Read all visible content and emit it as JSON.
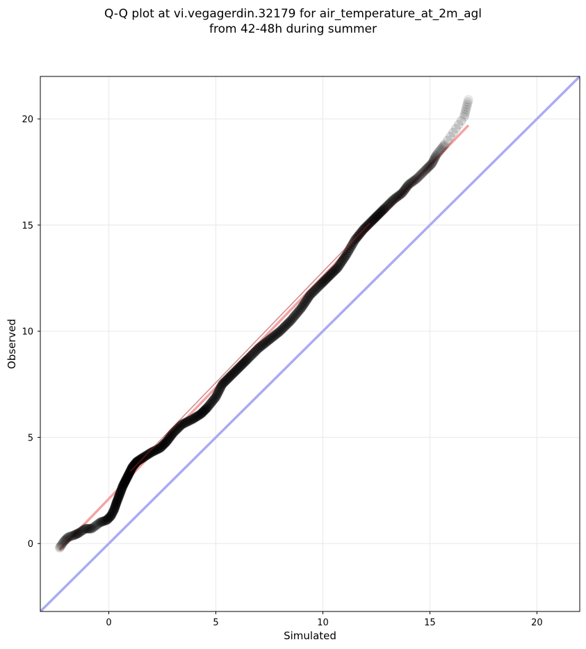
{
  "title_line1": "Q-Q plot at vi.vegagerdin.32179 for air_temperature_at_2m_agl",
  "title_line2": "from 42-48h during summer",
  "chart_data": {
    "type": "scatter",
    "title": "Q-Q plot at vi.vegagerdin.32179 for air_temperature_at_2m_agl\nfrom 42-48h during summer",
    "xlabel": "Simulated",
    "ylabel": "Observed",
    "xlim": [
      -3.2,
      22.0
    ],
    "ylim": [
      -3.2,
      22.0
    ],
    "xticks": [
      0,
      5,
      10,
      15,
      20
    ],
    "yticks": [
      0,
      5,
      10,
      15,
      20
    ],
    "grid": true,
    "reference_line": {
      "name": "1:1 line",
      "color": "#aaaaf2",
      "points": [
        [
          -3.2,
          -3.2
        ],
        [
          22.0,
          22.0
        ]
      ]
    },
    "fit_line": {
      "color": "#f4a3a3",
      "points": [
        [
          -2.3,
          -0.3
        ],
        [
          16.8,
          19.7
        ]
      ]
    },
    "quantile_curve": [
      [
        -2.3,
        -0.2
      ],
      [
        -2.1,
        0.1
      ],
      [
        -1.9,
        0.3
      ],
      [
        -1.6,
        0.4
      ],
      [
        -1.4,
        0.5
      ],
      [
        -1.1,
        0.7
      ],
      [
        -0.8,
        0.7
      ],
      [
        -0.4,
        1.0
      ],
      [
        -0.1,
        1.1
      ],
      [
        0.1,
        1.3
      ],
      [
        0.25,
        1.6
      ],
      [
        0.35,
        1.9
      ],
      [
        0.5,
        2.3
      ],
      [
        0.65,
        2.7
      ],
      [
        0.8,
        3.0
      ],
      [
        0.95,
        3.3
      ],
      [
        1.1,
        3.6
      ],
      [
        1.3,
        3.85
      ],
      [
        1.6,
        4.05
      ],
      [
        2.0,
        4.3
      ],
      [
        2.4,
        4.5
      ],
      [
        2.7,
        4.8
      ],
      [
        3.0,
        5.2
      ],
      [
        3.4,
        5.6
      ],
      [
        3.9,
        5.85
      ],
      [
        4.3,
        6.1
      ],
      [
        4.6,
        6.4
      ],
      [
        5.0,
        6.9
      ],
      [
        5.3,
        7.5
      ],
      [
        5.7,
        7.9
      ],
      [
        6.1,
        8.3
      ],
      [
        6.5,
        8.7
      ],
      [
        7.0,
        9.2
      ],
      [
        7.5,
        9.6
      ],
      [
        8.0,
        10.0
      ],
      [
        8.5,
        10.5
      ],
      [
        9.0,
        11.1
      ],
      [
        9.4,
        11.7
      ],
      [
        9.9,
        12.2
      ],
      [
        10.3,
        12.6
      ],
      [
        10.7,
        13.0
      ],
      [
        11.1,
        13.6
      ],
      [
        11.5,
        14.3
      ],
      [
        11.9,
        14.8
      ],
      [
        12.3,
        15.2
      ],
      [
        12.6,
        15.5
      ],
      [
        12.9,
        15.8
      ],
      [
        13.3,
        16.2
      ],
      [
        13.7,
        16.5
      ],
      [
        14.0,
        16.9
      ],
      [
        14.4,
        17.2
      ],
      [
        14.8,
        17.6
      ],
      [
        15.1,
        17.9
      ],
      [
        15.3,
        18.3
      ],
      [
        15.7,
        18.8
      ],
      [
        16.6,
        20.1
      ],
      [
        16.8,
        20.9
      ]
    ],
    "point_color": "#000000"
  }
}
